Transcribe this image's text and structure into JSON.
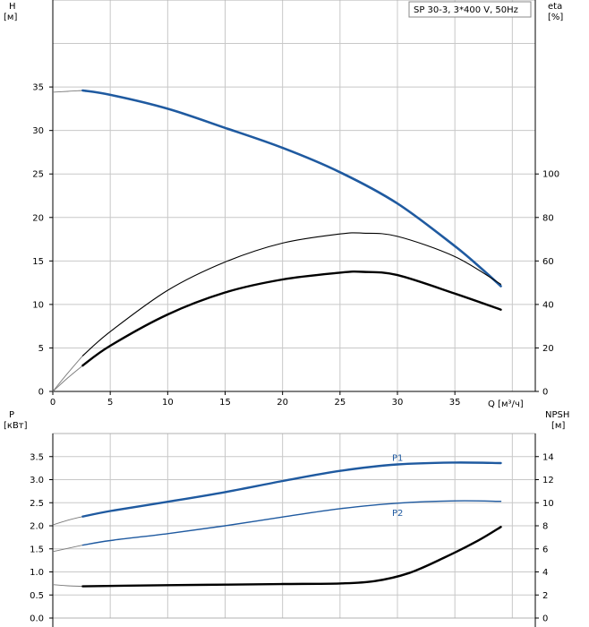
{
  "chart_data": [
    {
      "type": "line",
      "panel": "top",
      "title": "SP 30-3, 3*400 V, 50Hz",
      "x_axis": {
        "label": "Q [м³/ч]",
        "range": [
          0,
          42
        ],
        "ticks": [
          0,
          5,
          10,
          15,
          20,
          25,
          30,
          35
        ]
      },
      "y_left": {
        "label_line1": "H",
        "label_line2": "[м]",
        "range": [
          0,
          45
        ],
        "ticks": [
          0,
          5,
          10,
          15,
          20,
          25,
          30,
          35
        ]
      },
      "y_right": {
        "label_line1": "eta",
        "label_line2": "[%]",
        "range": [
          0,
          180
        ],
        "ticks": [
          0,
          20,
          40,
          60,
          80,
          100
        ]
      },
      "grid": true,
      "series": [
        {
          "axis": "left",
          "color": "#1f5aa0",
          "width": 2.6,
          "points": [
            [
              2.6,
              34.6
            ],
            [
              5,
              34.1
            ],
            [
              10,
              32.5
            ],
            [
              15,
              30.3
            ],
            [
              20,
              28.0
            ],
            [
              25,
              25.2
            ],
            [
              30,
              21.6
            ],
            [
              35,
              16.7
            ],
            [
              37.5,
              13.9
            ],
            [
              39,
              12.1
            ]
          ],
          "ext_points": [
            [
              0,
              34.4
            ],
            [
              1.3,
              34.5
            ],
            [
              2.6,
              34.6
            ]
          ]
        },
        {
          "axis": "right",
          "color": "#000000",
          "width": 1.1,
          "points": [
            [
              2.6,
              16.4
            ],
            [
              5,
              27.5
            ],
            [
              10,
              46.5
            ],
            [
              15,
              59.5
            ],
            [
              20,
              68.2
            ],
            [
              25,
              72.4
            ],
            [
              27,
              72.8
            ],
            [
              30,
              71.3
            ],
            [
              35,
              62.0
            ],
            [
              39,
              49.3
            ]
          ],
          "ext_points": [
            [
              0,
              0
            ],
            [
              1.3,
              8.4
            ],
            [
              2.6,
              16.4
            ]
          ]
        },
        {
          "axis": "right",
          "color": "#000000",
          "width": 2.4,
          "points": [
            [
              2.6,
              11.9
            ],
            [
              5,
              21.0
            ],
            [
              10,
              35.4
            ],
            [
              15,
              45.5
            ],
            [
              20,
              51.5
            ],
            [
              25,
              54.6
            ],
            [
              27,
              55.0
            ],
            [
              30,
              53.5
            ],
            [
              35,
              45.0
            ],
            [
              39,
              37.6
            ]
          ],
          "ext_points": [
            [
              0,
              0
            ],
            [
              1.3,
              6.2
            ],
            [
              2.6,
              11.9
            ]
          ]
        }
      ]
    },
    {
      "type": "line",
      "panel": "bottom",
      "x_axis": {
        "range": [
          0,
          42
        ]
      },
      "y_left": {
        "label_line1": "P",
        "label_line2": "[кВт]",
        "range": [
          0,
          4
        ],
        "ticks": [
          "0.0",
          "0.5",
          "1.0",
          "1.5",
          "2.0",
          "2.5",
          "3.0",
          "3.5"
        ]
      },
      "y_right": {
        "label_line1": "NPSH",
        "label_line2": "[м]",
        "range": [
          0,
          16
        ],
        "ticks": [
          0,
          2,
          4,
          6,
          8,
          10,
          12,
          14
        ]
      },
      "grid": true,
      "series": [
        {
          "name": "P1",
          "axis": "left",
          "color": "#1f5aa0",
          "width": 2.4,
          "points": [
            [
              2.6,
              2.2
            ],
            [
              5,
              2.32
            ],
            [
              10,
              2.52
            ],
            [
              15,
              2.73
            ],
            [
              20,
              2.97
            ],
            [
              25,
              3.19
            ],
            [
              30,
              3.33
            ],
            [
              35,
              3.37
            ],
            [
              39,
              3.36
            ]
          ],
          "ext_points": [
            [
              0,
              2.02
            ],
            [
              1.3,
              2.12
            ],
            [
              2.6,
              2.2
            ]
          ]
        },
        {
          "name": "P2",
          "axis": "left",
          "color": "#1f5aa0",
          "width": 1.4,
          "points": [
            [
              2.6,
              1.58
            ],
            [
              5,
              1.68
            ],
            [
              10,
              1.83
            ],
            [
              15,
              2.0
            ],
            [
              20,
              2.19
            ],
            [
              25,
              2.37
            ],
            [
              30,
              2.49
            ],
            [
              35,
              2.54
            ],
            [
              39,
              2.53
            ]
          ],
          "ext_points": [
            [
              0,
              1.44
            ],
            [
              1.3,
              1.51
            ],
            [
              2.6,
              1.58
            ]
          ]
        },
        {
          "axis": "right",
          "color": "#000000",
          "width": 2.4,
          "points": [
            [
              2.6,
              2.75
            ],
            [
              10,
              2.85
            ],
            [
              15,
              2.9
            ],
            [
              20,
              2.95
            ],
            [
              25,
              3.0
            ],
            [
              28,
              3.2
            ],
            [
              31,
              3.9
            ],
            [
              34,
              5.2
            ],
            [
              37,
              6.7
            ],
            [
              39,
              7.9
            ]
          ],
          "ext_points": [
            [
              0,
              2.9
            ],
            [
              1.3,
              2.8
            ],
            [
              2.6,
              2.75
            ]
          ]
        }
      ]
    }
  ]
}
